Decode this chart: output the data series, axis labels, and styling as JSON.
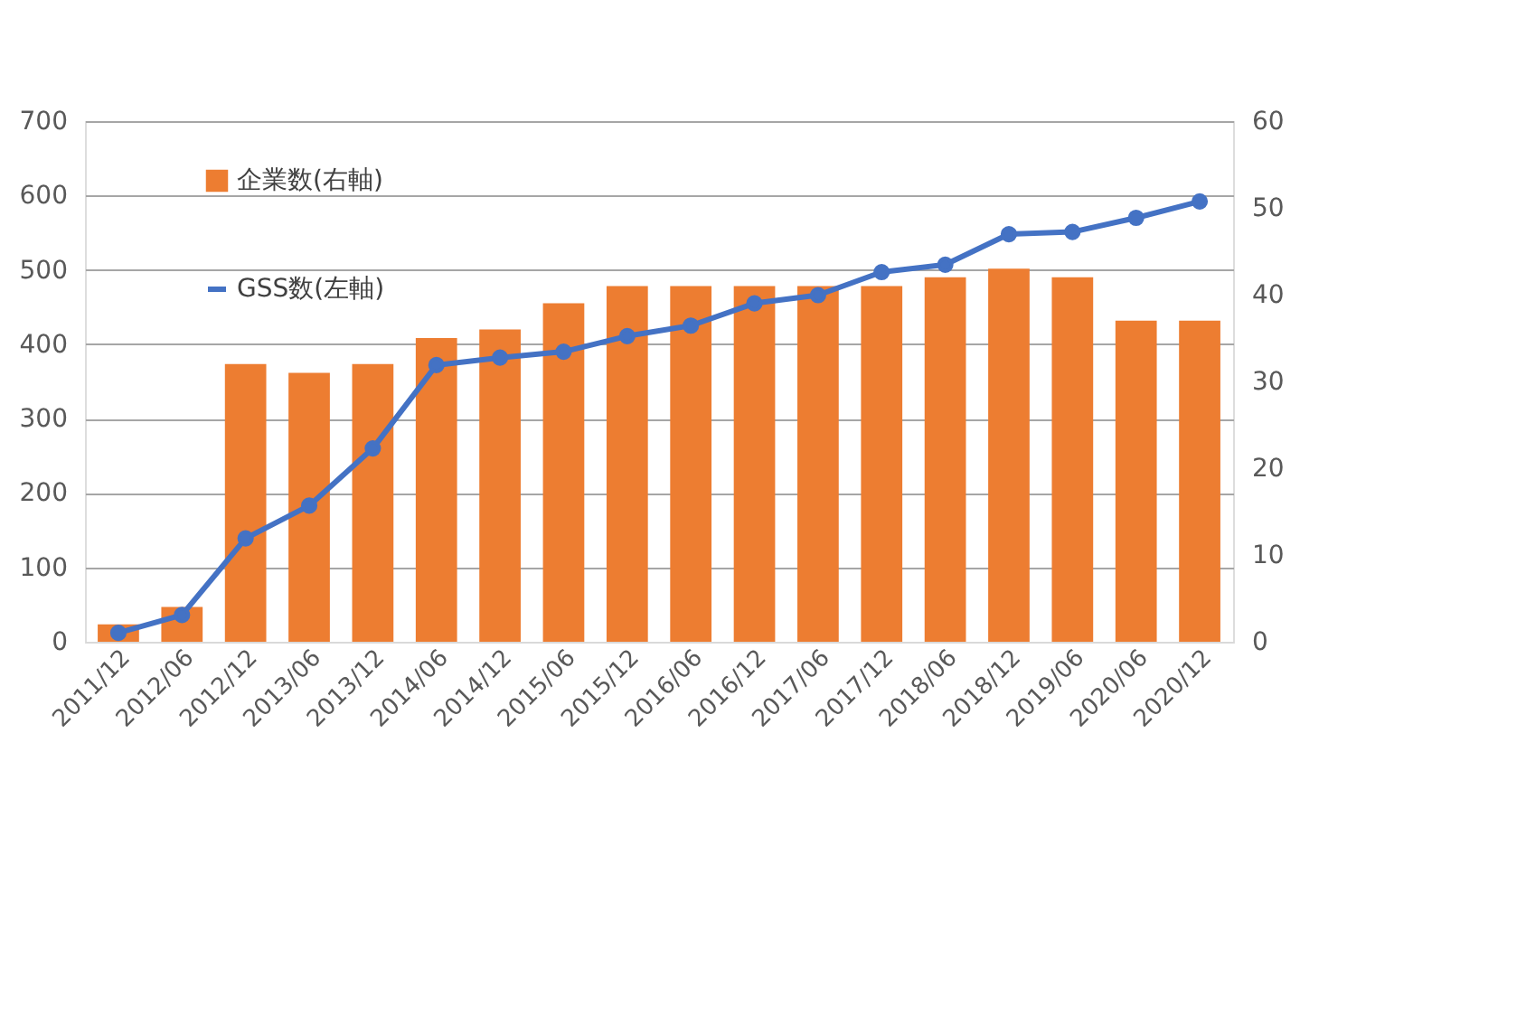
{
  "chart_data": {
    "type": "bar",
    "categories": [
      "2011/12",
      "2012/06",
      "2012/12",
      "2013/06",
      "2013/12",
      "2014/06",
      "2014/12",
      "2015/06",
      "2015/12",
      "2016/06",
      "2016/12",
      "2017/06",
      "2017/12",
      "2018/06",
      "2018/12",
      "2019/06",
      "2020/06",
      "2020/12"
    ],
    "series": [
      {
        "name": "企業数(右軸)",
        "axis": "y2",
        "color": "#ed7d31",
        "values": [
          2,
          4,
          32,
          31,
          32,
          35,
          36,
          39,
          41,
          41,
          41,
          41,
          41,
          42,
          43,
          42,
          37,
          37
        ]
      },
      {
        "name": "GSS数(左軸)",
        "type": "line",
        "color": "#4472c4",
        "values": [
          12,
          36,
          139,
          183,
          260,
          372,
          382,
          390,
          411,
          425,
          455,
          466,
          497,
          507,
          548,
          551,
          570,
          592
        ]
      }
    ],
    "ylim": [
      0,
      700
    ],
    "yticks": [
      0,
      100,
      200,
      300,
      400,
      500,
      600,
      700
    ],
    "y2lim": [
      0,
      60
    ],
    "y2ticks": [
      0,
      10,
      20,
      30,
      40,
      50,
      60
    ],
    "grid": "y",
    "legend": "top left",
    "marker": "circle",
    "line_style": "solid"
  }
}
